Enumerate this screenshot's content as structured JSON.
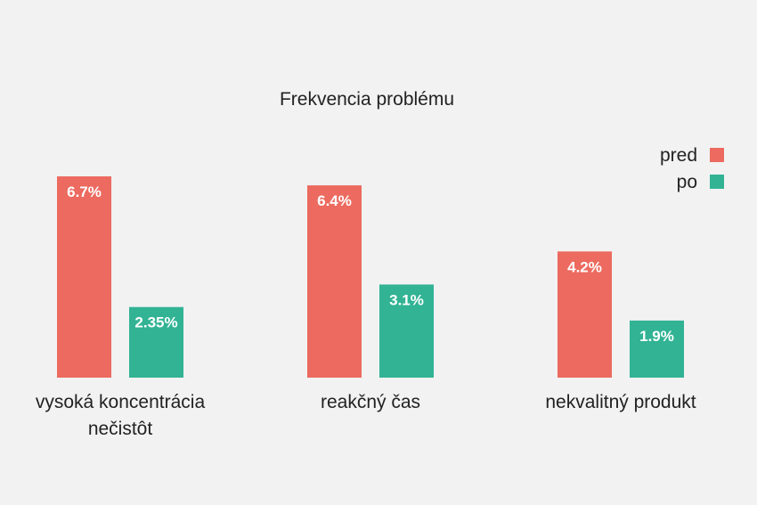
{
  "chart_data": {
    "type": "bar",
    "title": "Frekvencia problému",
    "categories": [
      [
        "vysoká koncentrácia",
        "nečistôt"
      ],
      [
        "reakčný čas"
      ],
      [
        "nekvalitný produkt"
      ]
    ],
    "series": [
      {
        "name": "pred",
        "color": "#ec6a5f",
        "values": [
          6.7,
          6.4,
          4.2
        ],
        "labels": [
          "6.7%",
          "6.4%",
          "4.2%"
        ]
      },
      {
        "name": "po",
        "color": "#31b394",
        "values": [
          2.35,
          3.1,
          1.9
        ],
        "labels": [
          "2.35%",
          "3.1%",
          "1.9%"
        ]
      }
    ],
    "ylim": [
      0,
      6.7
    ],
    "grid": false,
    "legend": "top-right"
  }
}
